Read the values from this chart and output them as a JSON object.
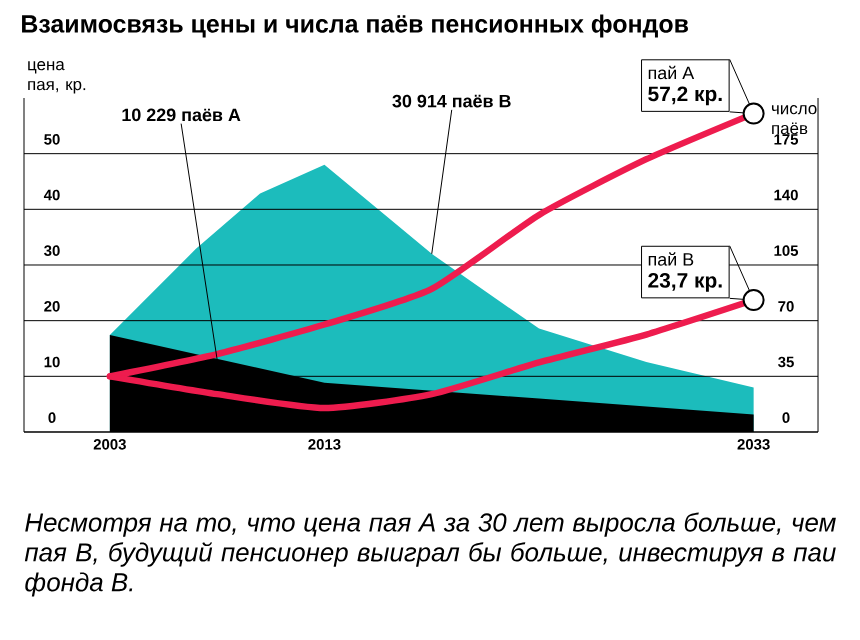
{
  "chart_data": {
    "type": "area",
    "title": "Взаимосвязь цены и числа паёв пенсионных фондов",
    "ylabel": "цена пая, кр.",
    "y2label": "число паёв",
    "xlim": [
      1999,
      2036
    ],
    "xticks": [
      2003,
      2013,
      2033
    ],
    "ylim": [
      0,
      60
    ],
    "yticks": [
      0,
      10,
      20,
      30,
      40,
      50
    ],
    "y2lim": [
      0,
      210
    ],
    "y2ticks": [
      0,
      35,
      70,
      105,
      140,
      175
    ],
    "grid": "y",
    "marker": "none",
    "series": [
      {
        "axis": "y2",
        "color": "#1cbcbc",
        "x": [
          2003,
          2007,
          2010,
          2013,
          2018,
          2023,
          2028,
          2033
        ],
        "values": [
          61,
          115,
          150,
          168,
          112,
          65,
          44,
          28
        ]
      },
      {
        "axis": "y2",
        "color": "#000000",
        "x": [
          2003,
          2008,
          2013,
          2023,
          2033
        ],
        "values": [
          61,
          46,
          31,
          21,
          11
        ]
      },
      {
        "type": "line",
        "name": "пай А",
        "color": "#ee1c4e",
        "x": [
          2003,
          2008,
          2013,
          2018,
          2023,
          2028,
          2033
        ],
        "values": [
          10,
          14,
          19.3,
          25.7,
          39,
          49,
          57.2
        ],
        "value_labels": [
          null,
          null,
          null,
          null,
          null,
          null,
          "57,2 кр."
        ]
      },
      {
        "type": "line",
        "name": "пай В",
        "color": "#ee1c4e",
        "x": [
          2003,
          2008,
          2013,
          2018,
          2023,
          2028,
          2033
        ],
        "values": [
          10,
          6.8,
          4.3,
          6.8,
          12.5,
          17.5,
          23.7
        ],
        "value_labels": [
          null,
          null,
          null,
          null,
          null,
          null,
          "23,7 кр."
        ]
      }
    ],
    "annotations": [
      "Несмотря на то, что цена пая А за 30 лет выросла больше, чем пая В, будущий пенсионер выиграл бы больше, инвестируя в паи фонда В.",
      {
        "text": "10 229 паёв А",
        "x": 2008,
        "y": 13
      },
      {
        "text": "30 914 паёв В",
        "x": 2018,
        "y": 32
      }
    ]
  }
}
